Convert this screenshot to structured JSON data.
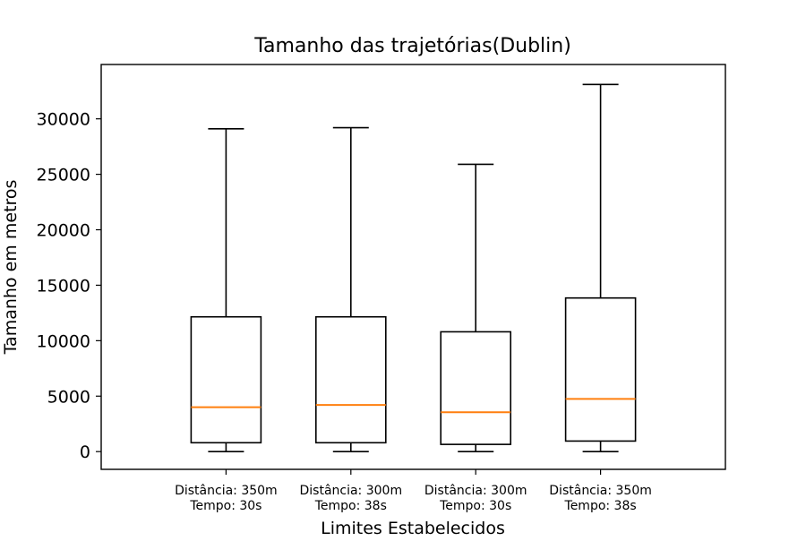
{
  "chart_data": {
    "type": "box",
    "title": "Tamanho das trajetórias(Dublin)",
    "xlabel": "Limites Estabelecidos",
    "ylabel": "Tamanho em metros",
    "ylim": [
      -1600,
      34900
    ],
    "yticks": [
      0,
      5000,
      10000,
      15000,
      20000,
      25000,
      30000
    ],
    "grid": false,
    "categories": [
      [
        "Distância: 350m",
        "Tempo: 30s"
      ],
      [
        "Distância: 300m",
        "Tempo: 38s"
      ],
      [
        "Distância: 300m",
        "Tempo: 30s"
      ],
      [
        "Distância: 350m",
        "Tempo: 38s"
      ]
    ],
    "boxes": [
      {
        "whisker_low": 0,
        "q1": 800,
        "median": 4000,
        "q3": 12150,
        "whisker_high": 29100
      },
      {
        "whisker_low": 0,
        "q1": 800,
        "median": 4200,
        "q3": 12150,
        "whisker_high": 29200
      },
      {
        "whisker_low": 0,
        "q1": 650,
        "median": 3550,
        "q3": 10800,
        "whisker_high": 25900
      },
      {
        "whisker_low": 0,
        "q1": 950,
        "median": 4750,
        "q3": 13850,
        "whisker_high": 33100
      }
    ],
    "colors": {
      "box": "#000000",
      "median": "#ff7f0e",
      "background": "#ffffff"
    }
  }
}
